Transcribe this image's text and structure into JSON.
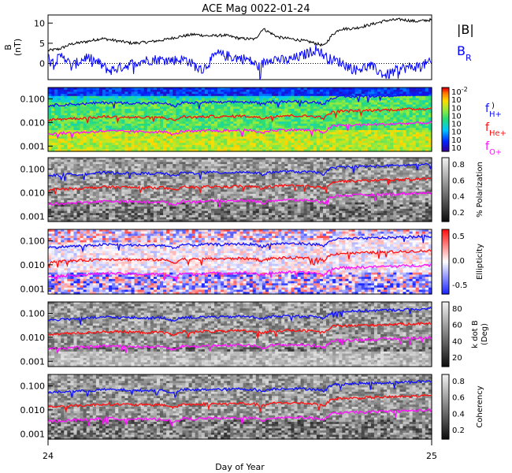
{
  "chart_data": [
    {
      "type": "line",
      "title": "ACE Mag 0022-01-24",
      "ylabel_lines": [
        "B",
        "(nT)"
      ],
      "xlim": [
        24,
        25
      ],
      "ylim": [
        -4,
        12
      ],
      "yticks": [
        10,
        5,
        0
      ],
      "legend": {
        "placement": "right",
        "entries": [
          "|B|",
          "B"
        ],
        "subscript_R": "R"
      },
      "colors": {
        "babs": "#000000",
        "br": "#0000ff"
      },
      "series": [
        {
          "key": "babs",
          "x": [
            24.0,
            24.03,
            24.06,
            24.1,
            24.14,
            24.18,
            24.22,
            24.26,
            24.3,
            24.34,
            24.38,
            24.42,
            24.46,
            24.5,
            24.54,
            24.56,
            24.6,
            24.64,
            24.68,
            24.72,
            24.74,
            24.76,
            24.8,
            24.84,
            24.88,
            24.92,
            24.96,
            25.0
          ],
          "values": [
            3.2,
            3.6,
            4.8,
            5.4,
            6.2,
            5.6,
            5.0,
            5.3,
            5.8,
            6.6,
            7.2,
            6.8,
            7.0,
            6.2,
            6.0,
            8.6,
            6.5,
            6.0,
            5.4,
            4.4,
            7.0,
            8.5,
            8.7,
            9.6,
            10.6,
            10.9,
            10.4,
            10.8
          ]
        },
        {
          "key": "br",
          "x": [
            24.0,
            24.02,
            24.04,
            24.06,
            24.08,
            24.1,
            24.13,
            24.16,
            24.2,
            24.24,
            24.28,
            24.32,
            24.36,
            24.4,
            24.44,
            24.48,
            24.52,
            24.55,
            24.58,
            24.62,
            24.66,
            24.7,
            24.73,
            24.76,
            24.8,
            24.84,
            24.88,
            24.92,
            24.96,
            25.0
          ],
          "values": [
            1.6,
            0.6,
            2.2,
            -0.8,
            0.4,
            1.6,
            0.2,
            -1.8,
            -0.6,
            0.6,
            1.0,
            0.8,
            1.0,
            -1.8,
            2.4,
            1.6,
            1.0,
            -0.8,
            1.4,
            0.6,
            1.8,
            3.6,
            1.2,
            0.4,
            -1.6,
            -0.6,
            -3.0,
            -1.2,
            -0.8,
            0.2
          ]
        }
      ]
    },
    {
      "type": "heatmap",
      "panel": "power",
      "xlim": [
        24,
        25
      ],
      "ylim_log": [
        0.0006,
        0.3
      ],
      "yticks": [
        "0.100",
        "0.010",
        "0.001"
      ],
      "colorbar": {
        "colormap": "rainbow",
        "labels": [
          "10",
          "10",
          "10",
          "10",
          "10",
          "10",
          "10",
          "10"
        ],
        "top_label": "10",
        "top_exp": "-2",
        "partial_label": ")"
      },
      "lines": [
        "H+",
        "He+",
        "O+"
      ],
      "legend": [
        "f",
        "f",
        "f"
      ],
      "legend_subscripts": [
        "H+",
        "He+",
        "O+"
      ]
    },
    {
      "type": "heatmap",
      "panel": "polarization",
      "xlim": [
        24,
        25
      ],
      "yticks": [
        "0.100",
        "0.010",
        "0.001"
      ],
      "colorbar": {
        "colormap": "gray",
        "range": [
          0,
          1
        ],
        "ticks": [
          "0.8",
          "0.6",
          "0.4",
          "0.2"
        ],
        "label": "% Polarization"
      }
    },
    {
      "type": "heatmap",
      "panel": "ellipticity",
      "xlim": [
        24,
        25
      ],
      "yticks": [
        "0.100",
        "0.010",
        "0.001"
      ],
      "colorbar": {
        "colormap": "red-white-blue",
        "range": [
          -1,
          1
        ],
        "ticks": [
          "0.5",
          "0.0",
          "-0.5"
        ],
        "label": "Ellipticity"
      }
    },
    {
      "type": "heatmap",
      "panel": "kdotb",
      "xlim": [
        24,
        25
      ],
      "yticks": [
        "0.100",
        "0.010",
        "0.001"
      ],
      "colorbar": {
        "colormap": "gray",
        "range": [
          0,
          90
        ],
        "ticks": [
          "80",
          "60",
          "40",
          "20"
        ],
        "label_lines": [
          "k dot B",
          "(Deg)"
        ]
      }
    },
    {
      "type": "heatmap",
      "panel": "coherency",
      "xlim": [
        24,
        25
      ],
      "yticks": [
        "0.100",
        "0.010",
        "0.001"
      ],
      "xticks": [
        "24",
        "25"
      ],
      "xlabel": "Day of Year",
      "colorbar": {
        "colormap": "gray",
        "range": [
          0,
          1
        ],
        "ticks": [
          "0.8",
          "0.6",
          "0.4",
          "0.2"
        ],
        "label": "Coherency"
      }
    }
  ],
  "gyro_lines": {
    "x": [
      24.0,
      24.05,
      24.1,
      24.15,
      24.2,
      24.25,
      24.3,
      24.33,
      24.35,
      24.38,
      24.42,
      24.46,
      24.5,
      24.54,
      24.56,
      24.58,
      24.62,
      24.66,
      24.7,
      24.72,
      24.74,
      24.76,
      24.8,
      24.84,
      24.88,
      24.92,
      24.96,
      25.0
    ],
    "H+": [
      0.052,
      0.058,
      0.062,
      0.07,
      0.067,
      0.064,
      0.066,
      0.048,
      0.07,
      0.066,
      0.072,
      0.07,
      0.075,
      0.07,
      0.058,
      0.074,
      0.078,
      0.076,
      0.072,
      0.06,
      0.11,
      0.12,
      0.124,
      0.13,
      0.135,
      0.142,
      0.15,
      0.157
    ],
    "He+": [
      0.013,
      0.0145,
      0.0155,
      0.0175,
      0.0168,
      0.016,
      0.0165,
      0.012,
      0.0175,
      0.0165,
      0.018,
      0.0175,
      0.0188,
      0.0175,
      0.0145,
      0.0185,
      0.0195,
      0.019,
      0.018,
      0.015,
      0.0275,
      0.03,
      0.031,
      0.0325,
      0.034,
      0.0355,
      0.0375,
      0.039
    ],
    "O+": [
      0.0033,
      0.0036,
      0.0039,
      0.0044,
      0.0042,
      0.004,
      0.0041,
      0.003,
      0.0044,
      0.0041,
      0.0045,
      0.0044,
      0.0047,
      0.0044,
      0.0036,
      0.0046,
      0.0049,
      0.0048,
      0.0045,
      0.0037,
      0.0069,
      0.0075,
      0.0078,
      0.0081,
      0.0085,
      0.0089,
      0.0094,
      0.0098
    ],
    "colors": {
      "H+": "#1010ff",
      "He+": "#ff1010",
      "O+": "#ff10ff"
    }
  }
}
